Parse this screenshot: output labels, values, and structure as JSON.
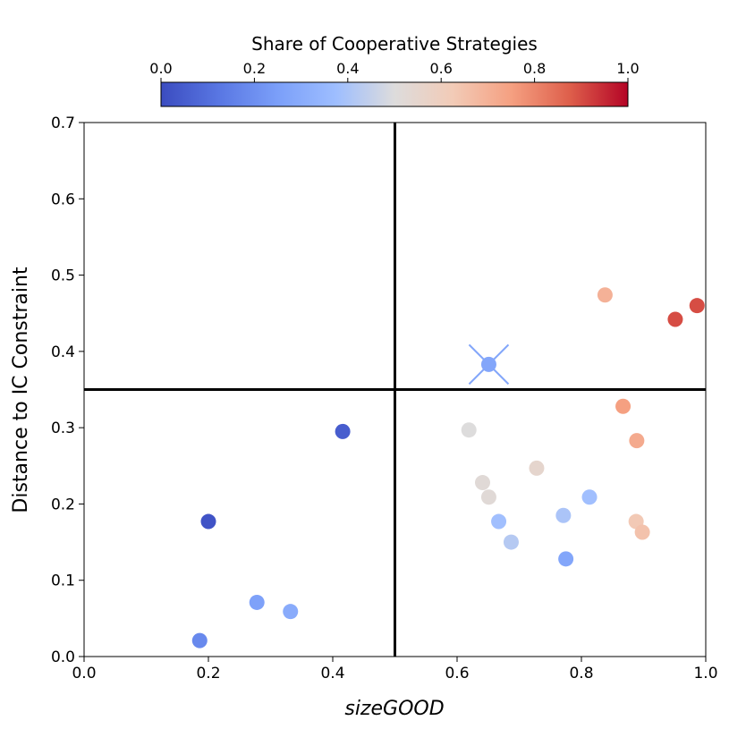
{
  "chart_data": {
    "type": "scatter",
    "title": "",
    "xlabel": "sizeGOOD",
    "ylabel": "Distance to IC Constraint",
    "xlim": [
      0.0,
      1.0
    ],
    "ylim": [
      0.0,
      0.7
    ],
    "xticks": [
      "0.0",
      "0.2",
      "0.4",
      "0.6",
      "0.8",
      "1.0"
    ],
    "yticks": [
      "0.0",
      "0.1",
      "0.2",
      "0.3",
      "0.4",
      "0.5",
      "0.6",
      "0.7"
    ],
    "grid": false,
    "reference_lines": {
      "x": 0.5,
      "y": 0.35
    },
    "colorbar": {
      "label": "Share of Cooperative Strategies",
      "range": [
        0.0,
        1.0
      ],
      "ticks": [
        "0.0",
        "0.2",
        "0.4",
        "0.6",
        "0.8",
        "1.0"
      ],
      "colormap": "coolwarm",
      "placement": "top"
    },
    "points": [
      {
        "x": 0.186,
        "y": 0.021,
        "c": 0.18
      },
      {
        "x": 0.2,
        "y": 0.177,
        "c": 0.02
      },
      {
        "x": 0.278,
        "y": 0.071,
        "c": 0.26
      },
      {
        "x": 0.332,
        "y": 0.059,
        "c": 0.3
      },
      {
        "x": 0.416,
        "y": 0.295,
        "c": 0.05
      },
      {
        "x": 0.619,
        "y": 0.297,
        "c": 0.5
      },
      {
        "x": 0.641,
        "y": 0.228,
        "c": 0.52
      },
      {
        "x": 0.651,
        "y": 0.383,
        "c": 0.28
      },
      {
        "x": 0.651,
        "y": 0.209,
        "c": 0.52
      },
      {
        "x": 0.667,
        "y": 0.177,
        "c": 0.38
      },
      {
        "x": 0.687,
        "y": 0.15,
        "c": 0.42
      },
      {
        "x": 0.728,
        "y": 0.247,
        "c": 0.55
      },
      {
        "x": 0.771,
        "y": 0.185,
        "c": 0.4
      },
      {
        "x": 0.775,
        "y": 0.128,
        "c": 0.28
      },
      {
        "x": 0.813,
        "y": 0.209,
        "c": 0.38
      },
      {
        "x": 0.838,
        "y": 0.474,
        "c": 0.7
      },
      {
        "x": 0.867,
        "y": 0.328,
        "c": 0.75
      },
      {
        "x": 0.888,
        "y": 0.177,
        "c": 0.63
      },
      {
        "x": 0.889,
        "y": 0.283,
        "c": 0.72
      },
      {
        "x": 0.898,
        "y": 0.163,
        "c": 0.65
      },
      {
        "x": 0.951,
        "y": 0.442,
        "c": 0.9
      },
      {
        "x": 0.986,
        "y": 0.46,
        "c": 0.9
      }
    ],
    "highlight": {
      "x": 0.651,
      "y": 0.383,
      "marker": "x",
      "c": 0.28
    }
  }
}
